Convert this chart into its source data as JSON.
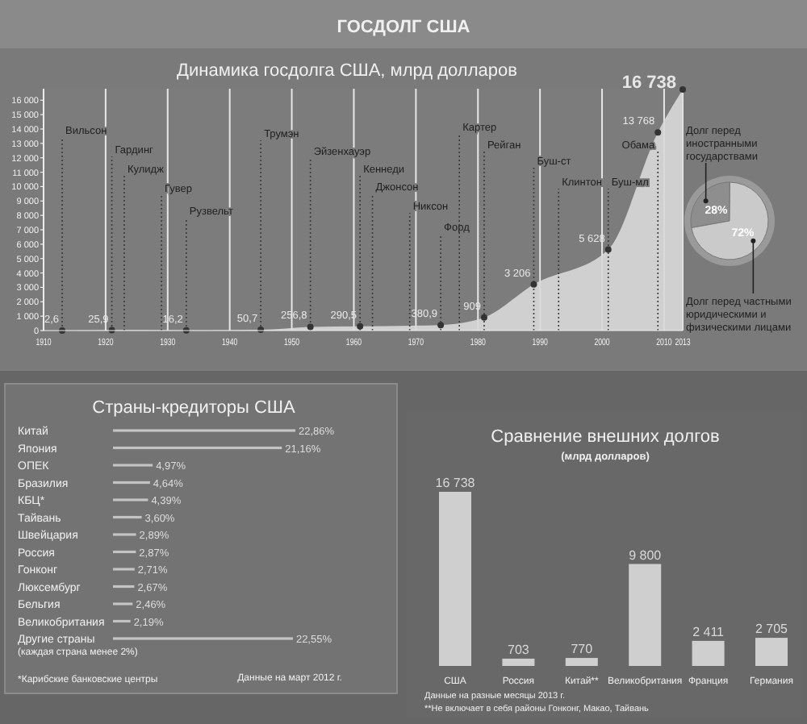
{
  "chart_data": [
    {
      "type": "area",
      "title": "ГОСДОЛГ США",
      "subtitle": "Динамика госдолга США, млрд долларов",
      "x": [
        1913,
        1921,
        1933,
        1945,
        1953,
        1961,
        1974,
        1981,
        1989,
        2001,
        2009,
        2013
      ],
      "values": [
        2.6,
        25.9,
        16.2,
        50.7,
        256.8,
        290.5,
        380.9,
        909,
        3206,
        5628,
        13768,
        16738
      ],
      "value_labels": [
        "2,6",
        "25,9",
        "16,2",
        "50,7",
        "256,8",
        "290,5",
        "380,9",
        "909",
        "3 206",
        "5 628",
        "13 768",
        "16 738"
      ],
      "color": "#d9d9d9",
      "marker": "circle",
      "grid": "x",
      "xlim": [
        1910,
        2013
      ],
      "ylim": [
        0,
        16800
      ],
      "xticks": [
        1910,
        1920,
        1930,
        1940,
        1950,
        1960,
        1970,
        1980,
        1990,
        2000,
        2010,
        2013
      ],
      "yticks": [
        0,
        {
          "value": 1000,
          "label": "1 000"
        },
        {
          "value": 2000,
          "label": "2 000"
        },
        {
          "value": 3000,
          "label": "3 000"
        },
        {
          "value": 4000,
          "label": "4 000"
        },
        {
          "value": 5000,
          "label": "5 000"
        },
        {
          "value": 6000,
          "label": "6 000"
        },
        {
          "value": 7000,
          "label": "7 000"
        },
        {
          "value": 8000,
          "label": "8 000"
        },
        {
          "value": 9000,
          "label": "9 000"
        },
        {
          "value": 10000,
          "label": "10 000"
        },
        {
          "value": 11000,
          "label": "11 000"
        },
        {
          "value": 12000,
          "label": "12 000"
        },
        {
          "value": 13000,
          "label": "13 000"
        },
        {
          "value": 14000,
          "label": "14 000"
        },
        {
          "value": 15000,
          "label": "15 000"
        },
        {
          "value": 16000,
          "label": "16 000"
        }
      ],
      "ref_lines": [
        {
          "axis": "x",
          "value": 1913,
          "label": "Вильсон",
          "line_style": "dotted"
        },
        {
          "axis": "x",
          "value": 1921,
          "label": "Гардинг",
          "line_style": "dotted"
        },
        {
          "axis": "x",
          "value": 1923,
          "label": "Кулидж",
          "line_style": "dotted"
        },
        {
          "axis": "x",
          "value": 1929,
          "label": "Гувер",
          "line_style": "dotted"
        },
        {
          "axis": "x",
          "value": 1933,
          "label": "Рузвельт",
          "line_style": "dotted"
        },
        {
          "axis": "x",
          "value": 1945,
          "label": "Трумэн",
          "line_style": "dotted"
        },
        {
          "axis": "x",
          "value": 1953,
          "label": "Эйзенхауэр",
          "line_style": "dotted"
        },
        {
          "axis": "x",
          "value": 1961,
          "label": "Кеннеди",
          "line_style": "dotted"
        },
        {
          "axis": "x",
          "value": 1963,
          "label": "Джонсон",
          "line_style": "dotted"
        },
        {
          "axis": "x",
          "value": 1969,
          "label": "Никсон",
          "line_style": "dotted"
        },
        {
          "axis": "x",
          "value": 1974,
          "label": "Форд",
          "line_style": "dotted"
        },
        {
          "axis": "x",
          "value": 1977,
          "label": "Картер",
          "line_style": "dotted"
        },
        {
          "axis": "x",
          "value": 1981,
          "label": "Рейган",
          "line_style": "dotted"
        },
        {
          "axis": "x",
          "value": 1989,
          "label": "Буш-ст",
          "line_style": "dotted"
        },
        {
          "axis": "x",
          "value": 1993,
          "label": "Клинтон",
          "line_style": "dotted"
        },
        {
          "axis": "x",
          "value": 2001,
          "label": "Буш-мл",
          "line_style": "dotted"
        },
        {
          "axis": "x",
          "value": 2009,
          "label": "Обама",
          "line_style": "dotted"
        }
      ]
    },
    {
      "type": "pie",
      "categories": [
        "Долг перед иностранными государствами",
        "Долг перед частными юридическими и физическими лицами"
      ],
      "values": [
        28,
        72
      ],
      "colors": [
        "#8e8e8e",
        "#cacaca"
      ],
      "value_labels": [
        "28%",
        "72%"
      ]
    },
    {
      "type": "bar",
      "orientation": "horizontal",
      "title": "Страны-кредиторы США",
      "categories": [
        "Китай",
        "Япония",
        "ОПЕК",
        "Бразилия",
        "КБЦ*",
        "Тайвань",
        "Швейцария",
        "Россия",
        "Гонконг",
        "Люксембург",
        "Бельгия",
        "Великобритания",
        "Другие страны"
      ],
      "values": [
        22.86,
        21.16,
        4.97,
        4.64,
        4.39,
        3.6,
        2.89,
        2.87,
        2.71,
        2.67,
        2.46,
        2.19,
        22.55
      ],
      "value_labels": [
        "22,86%",
        "21,16%",
        "4,97%",
        "4,64%",
        "4,39%",
        "3,60%",
        "2,89%",
        "2,87%",
        "2,71%",
        "2,67%",
        "2,46%",
        "2,19%",
        "22,55%"
      ],
      "color": "#c4c4c4",
      "annotations": [
        "(каждая страна менее 2%)",
        "*Карибские банковские центры",
        "Данные на март 2012 г."
      ]
    },
    {
      "type": "bar",
      "title": "Сравнение внешних долгов",
      "subtitle": "(млрд долларов)",
      "categories": [
        "США",
        "Россия",
        "Китай**",
        "Великобритания",
        "Франция",
        "Германия"
      ],
      "values": [
        16738,
        703,
        770,
        9800,
        2411,
        2705
      ],
      "data_labels": true,
      "color": "#cfcfcf",
      "annotations": [
        "Данные на разные месяцы 2013 г.",
        "**Не включает в себя районы Гонконг, Макао, Тайвань"
      ]
    }
  ]
}
